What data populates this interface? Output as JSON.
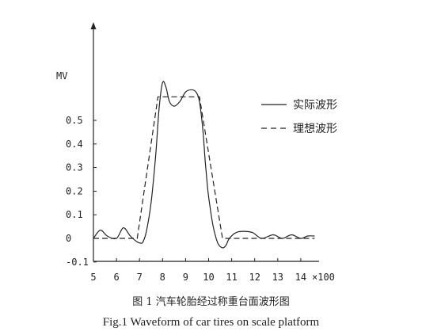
{
  "chart_data": {
    "type": "line",
    "ylabel": "MV",
    "x_unit_label": "×100",
    "x_ticks": [
      5,
      6,
      7,
      8,
      9,
      10,
      11,
      12,
      13,
      14
    ],
    "y_ticks": [
      -0.1,
      0,
      0.1,
      0.2,
      0.3,
      0.4,
      0.5
    ],
    "y_tick_labels": [
      "-0.1",
      "0",
      "0.1",
      "0.2",
      "0.3",
      "0.4",
      "0.5"
    ],
    "xlim": [
      5,
      14.7
    ],
    "ylim": [
      -0.1,
      0.9
    ],
    "grid": false,
    "legend_position": "right",
    "series": [
      {
        "name": "实际波形",
        "style": "solid",
        "color": "#222222",
        "x": [
          5.0,
          5.3,
          5.6,
          6.0,
          6.3,
          6.6,
          6.9,
          7.05,
          7.15,
          7.3,
          7.5,
          7.7,
          7.85,
          8.0,
          8.15,
          8.3,
          8.5,
          8.75,
          9.0,
          9.25,
          9.45,
          9.6,
          9.75,
          9.85,
          9.95,
          10.05,
          10.2,
          10.4,
          10.6,
          10.75,
          10.9,
          11.2,
          11.5,
          11.9,
          12.3,
          12.8,
          13.2,
          13.6,
          14.0,
          14.3,
          14.6
        ],
        "y": [
          0.0,
          0.035,
          0.01,
          0.0,
          0.045,
          0.01,
          -0.015,
          -0.02,
          -0.015,
          0.03,
          0.15,
          0.35,
          0.55,
          0.66,
          0.64,
          0.58,
          0.56,
          0.58,
          0.62,
          0.63,
          0.62,
          0.58,
          0.46,
          0.33,
          0.22,
          0.14,
          0.05,
          -0.02,
          -0.04,
          -0.03,
          0.0,
          0.025,
          0.03,
          0.025,
          0.0,
          0.015,
          0.0,
          0.015,
          0.0,
          0.01,
          0.01
        ]
      },
      {
        "name": "理想波形",
        "style": "dashed",
        "color": "#222222",
        "x": [
          5.0,
          6.9,
          7.8,
          9.6,
          10.6,
          14.6
        ],
        "y": [
          0.0,
          0.0,
          0.6,
          0.6,
          0.0,
          0.0
        ]
      }
    ]
  },
  "captions": {
    "cn": "图 1   汽车轮胎经过称重台面波形图",
    "en": "Fig.1   Waveform of car tires on scale platform"
  }
}
